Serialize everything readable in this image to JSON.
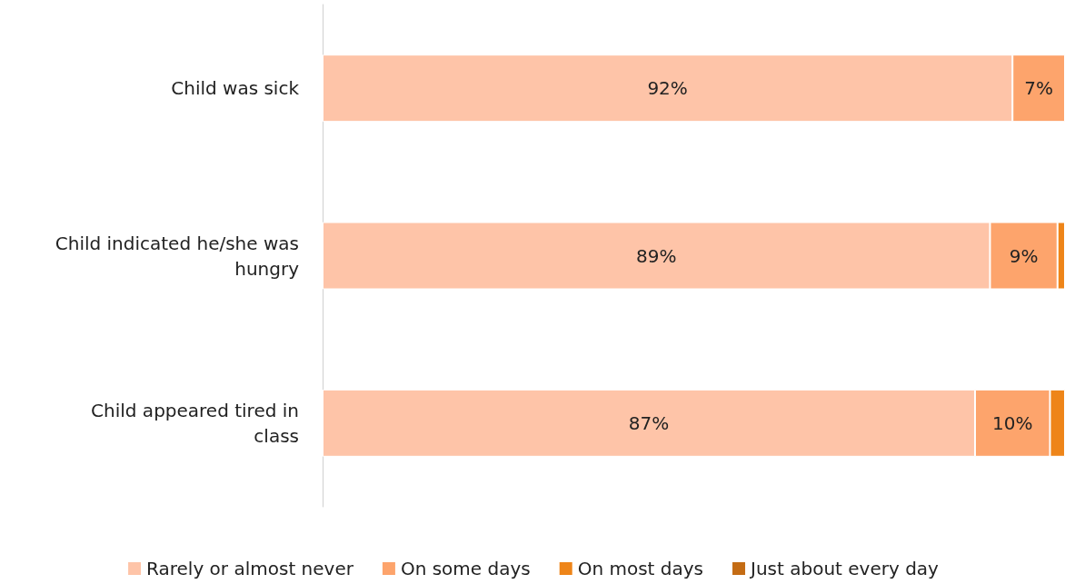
{
  "chart_data": {
    "type": "bar",
    "orientation": "horizontal",
    "stacked": true,
    "legend": "bottom",
    "tick_labels": "y",
    "categories": [
      "Child was sick",
      "Child indicated he/she was hungry",
      "Child appeared tired in class"
    ],
    "series": [
      {
        "name": "Rarely or almost never",
        "color": "#fec4a8",
        "values": [
          92,
          89,
          87
        ],
        "value_labels": [
          "92%",
          "89%",
          "87%"
        ]
      },
      {
        "name": "On some days",
        "color": "#fda46c",
        "values": [
          7,
          9,
          10
        ],
        "value_labels": [
          "7%",
          "9%",
          "10%"
        ]
      },
      {
        "name": "On most days",
        "color": "#ee8519",
        "values": [
          null,
          1,
          2
        ],
        "value_labels": [
          null,
          null,
          null
        ]
      },
      {
        "name": "Just about every day",
        "color": "#c46c14",
        "values": [
          null,
          null,
          null
        ],
        "value_labels": [
          null,
          null,
          null
        ]
      }
    ]
  }
}
